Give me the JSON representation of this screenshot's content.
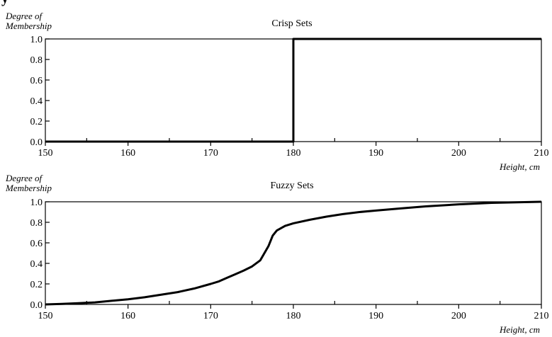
{
  "fragment": "y",
  "chart_data": [
    {
      "type": "line",
      "title": "Crisp Sets",
      "ylabel": [
        "Degree of",
        "Membership"
      ],
      "xlabel": "",
      "xlim": [
        150,
        210
      ],
      "ylim": [
        0,
        1
      ],
      "x_ticks": [
        150,
        160,
        170,
        180,
        190,
        200,
        210
      ],
      "x_tick_labels": [
        "150",
        "160",
        "170",
        "180",
        "190",
        "200",
        "210"
      ],
      "y_ticks": [
        0,
        0.2,
        0.4,
        0.6,
        0.8,
        1.0
      ],
      "y_tick_labels": [
        "0.0",
        "0.2",
        "0.4",
        "0.6",
        "0.8",
        "1.0"
      ],
      "x_minor_ticks": [
        155,
        165,
        175,
        185,
        195,
        205
      ],
      "grid": false,
      "series": [
        {
          "x": [
            150,
            180,
            180,
            210
          ],
          "y": [
            0,
            0,
            1,
            1
          ]
        }
      ]
    },
    {
      "type": "line",
      "title": "Fuzzy Sets",
      "ylabel": [
        "Degree of",
        "Membership"
      ],
      "xlabel": "Height, cm",
      "xlim": [
        150,
        210
      ],
      "ylim": [
        0,
        1
      ],
      "x_ticks": [
        150,
        160,
        170,
        180,
        190,
        200,
        210
      ],
      "x_tick_labels": [
        "150",
        "160",
        "170",
        "180",
        "190",
        "200",
        "210"
      ],
      "y_ticks": [
        0,
        0.2,
        0.4,
        0.6,
        0.8,
        1.0
      ],
      "y_tick_labels": [
        "0.0",
        "0.2",
        "0.4",
        "0.6",
        "0.8",
        "1.0"
      ],
      "x_minor_ticks": [
        155,
        165,
        175,
        185,
        195,
        205
      ],
      "grid": false,
      "series": [
        {
          "x": [
            150,
            152,
            154,
            156,
            158,
            160,
            162,
            164,
            166,
            168,
            170,
            171,
            172,
            173,
            174,
            175,
            176,
            176.5,
            177,
            177.5,
            178,
            179,
            180,
            182,
            184,
            186,
            188,
            190,
            193,
            196,
            200,
            204,
            207,
            210
          ],
          "y": [
            0.0,
            0.005,
            0.012,
            0.02,
            0.035,
            0.05,
            0.07,
            0.095,
            0.12,
            0.155,
            0.2,
            0.225,
            0.26,
            0.295,
            0.33,
            0.37,
            0.43,
            0.5,
            0.57,
            0.67,
            0.72,
            0.765,
            0.79,
            0.825,
            0.855,
            0.88,
            0.9,
            0.915,
            0.935,
            0.955,
            0.975,
            0.99,
            0.995,
            1.0
          ]
        }
      ]
    }
  ],
  "panel1_xlabel": "Height, cm"
}
